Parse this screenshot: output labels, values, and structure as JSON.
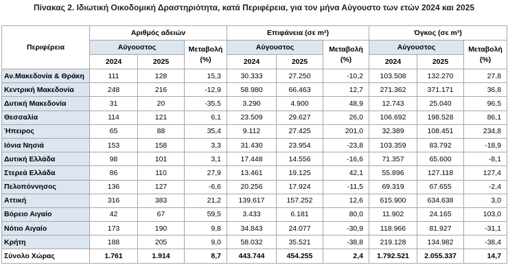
{
  "title": "Πίνακας 2. Ιδιωτική Οικοδομική Δραστηριότητα, κατά  Περιφέρεια, για τον μήνα Αύγουστο των ετών 2024 και 2025",
  "header": {
    "region": "Περιφέρεια",
    "groups": [
      {
        "label": "Αριθμός αδειών",
        "month": "Αύγουστος",
        "change": [
          "Μεταβολή",
          "(%)"
        ],
        "years": [
          "2024",
          "2025"
        ]
      },
      {
        "label": "Επιφάνεια (σε m²)",
        "month": "Αύγουστος",
        "change": [
          "Μεταβολή",
          "(%)"
        ],
        "years": [
          "2024",
          "2025"
        ]
      },
      {
        "label": "Όγκος (σε m³)",
        "month": "Αύγουστος",
        "change": [
          "Μεταβολή",
          "(%)"
        ],
        "years": [
          "2024",
          "2025"
        ]
      }
    ]
  },
  "table": {
    "rows": [
      [
        "Αν.Μακεδονία & Θράκη",
        "111",
        "128",
        "15,3",
        "30.333",
        "27.250",
        "-10,2",
        "103.508",
        "132.270",
        "27,8"
      ],
      [
        "Κεντρική Μακεδονία",
        "248",
        "216",
        "-12,9",
        "58.980",
        "66.463",
        "12,7",
        "271.362",
        "371.171",
        "36,8"
      ],
      [
        "Δυτική Μακεδονία",
        "31",
        "20",
        "-35,5",
        "3.290",
        "4.900",
        "48,9",
        "12.743",
        "25.040",
        "96,5"
      ],
      [
        "Θεσσαλία",
        "114",
        "121",
        "6,1",
        "23.509",
        "29.627",
        "26,0",
        "106.692",
        "198.528",
        "86,1"
      ],
      [
        "Ήπειρος",
        "65",
        "88",
        "35,4",
        "9.112",
        "27.425",
        "201,0",
        "32.389",
        "108.451",
        "234,8"
      ],
      [
        "Ιόνια Νησιά",
        "153",
        "158",
        "3,3",
        "31.430",
        "23.954",
        "-23,8",
        "103.359",
        "83.792",
        "-18,9"
      ],
      [
        "Δυτική Ελλάδα",
        "98",
        "101",
        "3,1",
        "17.448",
        "14.556",
        "-16,6",
        "71.357",
        "65.600",
        "-8,1"
      ],
      [
        "Στερεά Ελλάδα",
        "86",
        "110",
        "27,9",
        "13.461",
        "19.125",
        "42,1",
        "55.896",
        "127.118",
        "127,4"
      ],
      [
        "Πελοπόννησος",
        "136",
        "127",
        "-6,6",
        "20.256",
        "17.924",
        "-11,5",
        "69.319",
        "67.655",
        "-2,4"
      ],
      [
        "Αττική",
        "316",
        "383",
        "21,2",
        "139.617",
        "157.252",
        "12,6",
        "615.900",
        "634.638",
        "3,0"
      ],
      [
        "Βόρειο Αιγαίο",
        "42",
        "67",
        "59,5",
        "3.433",
        "6.181",
        "80,0",
        "11.902",
        "24.165",
        "103,0"
      ],
      [
        "Νότιο Αιγαίο",
        "173",
        "190",
        "9,8",
        "34.843",
        "24.077",
        "-30,9",
        "118.966",
        "81.927",
        "-31,1"
      ],
      [
        "Κρήτη",
        "188",
        "205",
        "9,0",
        "58.032",
        "35.521",
        "-38,8",
        "219.128",
        "134.982",
        "-38,4"
      ]
    ],
    "total": [
      "Σύνολο Χώρας",
      "1.761",
      "1.914",
      "8,7",
      "443.744",
      "454.255",
      "2,4",
      "1.792.521",
      "2.055.337",
      "14,7"
    ]
  }
}
